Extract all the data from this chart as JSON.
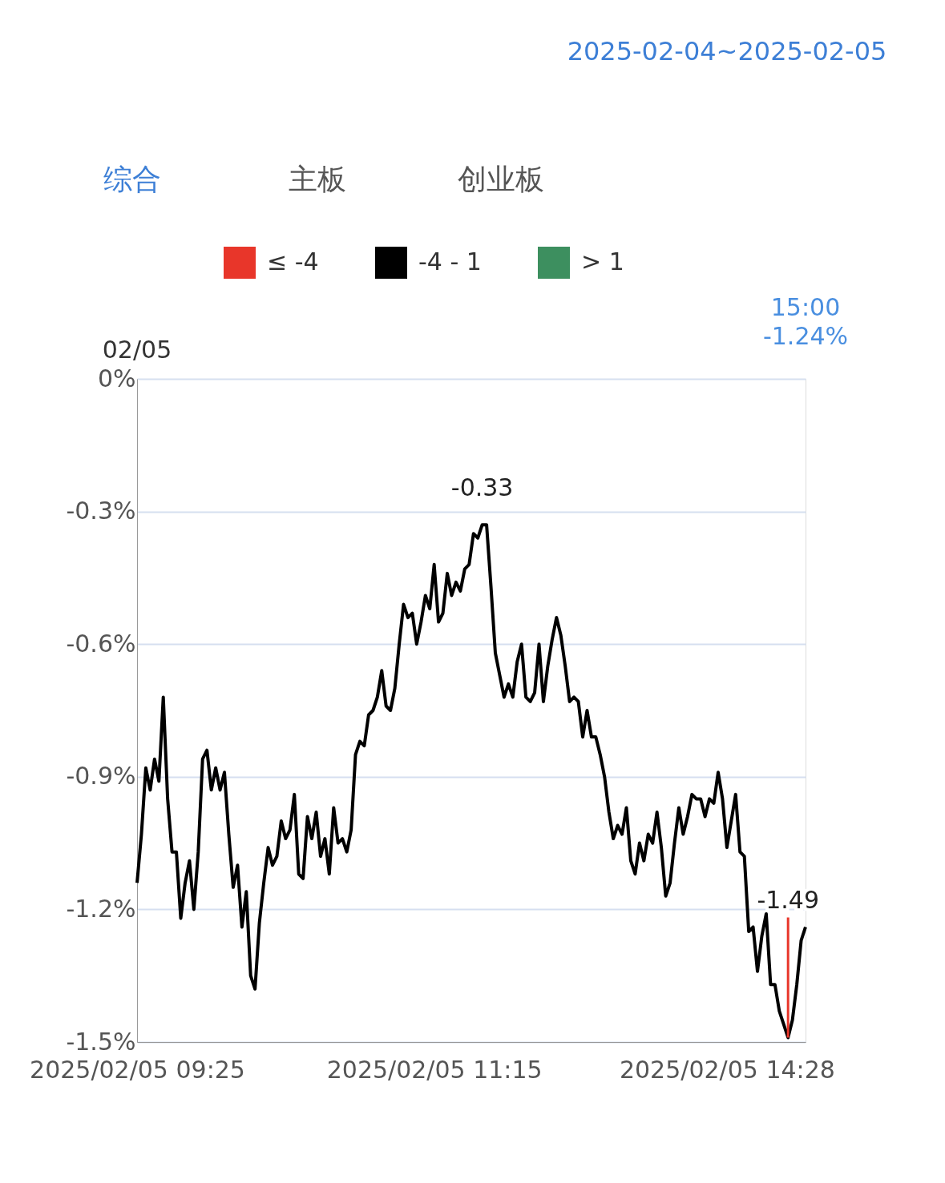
{
  "chart_data": {
    "type": "line",
    "categories": [
      "2025/02/05 09:25",
      null,
      null,
      null,
      null,
      null,
      null,
      null,
      null,
      null,
      null,
      null,
      null,
      null,
      null,
      null,
      null,
      null,
      null,
      null,
      null,
      null,
      null,
      null,
      null,
      null,
      null,
      null,
      null,
      null,
      null,
      null,
      null,
      null,
      null,
      null,
      null,
      null,
      null,
      null,
      null,
      null,
      null,
      null,
      null,
      null,
      null,
      null,
      null,
      null,
      null,
      null,
      null,
      null,
      null,
      null,
      null,
      null,
      null,
      null,
      null,
      null,
      null,
      null,
      null,
      null,
      null,
      null,
      "2025/02/05 11:15",
      null,
      null,
      null,
      null,
      null,
      null,
      null,
      null,
      null,
      null,
      null,
      null,
      null,
      null,
      null,
      null,
      null,
      null,
      null,
      null,
      null,
      null,
      null,
      null,
      null,
      null,
      null,
      null,
      null,
      null,
      null,
      null,
      null,
      null,
      null,
      null,
      null,
      null,
      null,
      null,
      null,
      null,
      null,
      null,
      null,
      null,
      null,
      null,
      null,
      null,
      null,
      null,
      null,
      null,
      null,
      null,
      null,
      null,
      null,
      null,
      null,
      null,
      null,
      null,
      null,
      null,
      "2025/02/05 14:28",
      null,
      null,
      null,
      null,
      null,
      null,
      null,
      null,
      null,
      null,
      null,
      null,
      null,
      null,
      null,
      null,
      null,
      null
    ],
    "series": [
      {
        "name": "≤ -4",
        "color": "#e8362a",
        "values": [
          null,
          null,
          null,
          null,
          null,
          null,
          null,
          null,
          null,
          null,
          null,
          null,
          null,
          null,
          null,
          null,
          null,
          null,
          null,
          null,
          null,
          null,
          null,
          null,
          null,
          null,
          null,
          null,
          null,
          null,
          null,
          null,
          null,
          null,
          null,
          null,
          null,
          null,
          null,
          null,
          null,
          null,
          null,
          null,
          null,
          null,
          null,
          null,
          null,
          null,
          null,
          null,
          null,
          null,
          null,
          null,
          null,
          null,
          null,
          null,
          null,
          null,
          null,
          null,
          null,
          null,
          null,
          null,
          null,
          null,
          null,
          null,
          null,
          null,
          null,
          null,
          null,
          null,
          null,
          null,
          null,
          null,
          null,
          null,
          null,
          null,
          null,
          null,
          null,
          null,
          null,
          null,
          null,
          null,
          null,
          null,
          null,
          null,
          null,
          null,
          null,
          null,
          null,
          null,
          null,
          null,
          null,
          null,
          null,
          null,
          null,
          null,
          null,
          null,
          null,
          null,
          null,
          null,
          null,
          null,
          null,
          null,
          null,
          null,
          null,
          null,
          null,
          null,
          null,
          null,
          null,
          null,
          null,
          null,
          null,
          null,
          null,
          null,
          null,
          null,
          null,
          null,
          null,
          null,
          null,
          null,
          null,
          null,
          null,
          null,
          null,
          null,
          null,
          null
        ]
      },
      {
        "name": "-4 - 1",
        "color": "#000000",
        "values": [
          -1.14,
          -1.03,
          -0.88,
          -0.93,
          -0.86,
          -0.91,
          -0.72,
          -0.95,
          -1.07,
          -1.07,
          -1.22,
          -1.14,
          -1.09,
          -1.2,
          -1.07,
          -0.86,
          -0.84,
          -0.93,
          -0.88,
          -0.93,
          -0.89,
          -1.03,
          -1.15,
          -1.1,
          -1.24,
          -1.16,
          -1.35,
          -1.38,
          -1.23,
          -1.14,
          -1.06,
          -1.1,
          -1.08,
          -1.0,
          -1.04,
          -1.02,
          -0.94,
          -1.12,
          -1.13,
          -0.99,
          -1.04,
          -0.98,
          -1.08,
          -1.04,
          -1.12,
          -0.97,
          -1.05,
          -1.04,
          -1.07,
          -1.02,
          -0.85,
          -0.82,
          -0.83,
          -0.76,
          -0.75,
          -0.72,
          -0.66,
          -0.74,
          -0.75,
          -0.7,
          -0.6,
          -0.51,
          -0.54,
          -0.53,
          -0.6,
          -0.55,
          -0.49,
          -0.52,
          -0.42,
          -0.55,
          -0.53,
          -0.44,
          -0.49,
          -0.46,
          -0.48,
          -0.43,
          -0.42,
          -0.35,
          -0.36,
          -0.33,
          -0.33,
          -0.47,
          -0.62,
          -0.67,
          -0.72,
          -0.69,
          -0.72,
          -0.64,
          -0.6,
          -0.72,
          -0.73,
          -0.71,
          -0.6,
          -0.73,
          -0.65,
          -0.59,
          -0.54,
          -0.58,
          -0.65,
          -0.73,
          -0.72,
          -0.73,
          -0.81,
          -0.75,
          -0.81,
          -0.81,
          -0.85,
          -0.9,
          -0.98,
          -1.04,
          -1.01,
          -1.03,
          -0.97,
          -1.09,
          -1.12,
          -1.05,
          -1.09,
          -1.03,
          -1.05,
          -0.98,
          -1.06,
          -1.17,
          -1.14,
          -1.05,
          -0.97,
          -1.03,
          -0.99,
          -0.94,
          -0.95,
          -0.95,
          -0.99,
          -0.95,
          -0.96,
          -0.89,
          -0.95,
          -1.06,
          -1.0,
          -0.94,
          -1.07,
          -1.08,
          -1.25,
          -1.24,
          -1.34,
          -1.26,
          -1.21,
          -1.37,
          -1.37,
          -1.43,
          -1.46,
          -1.49,
          -1.45,
          -1.37,
          -1.27,
          -1.24
        ]
      },
      {
        "name": "> 1",
        "color": "#3d8f5f",
        "values": [
          null,
          null,
          null,
          null,
          null,
          null,
          null,
          null,
          null,
          null,
          null,
          null,
          null,
          null,
          null,
          null,
          null,
          null,
          null,
          null,
          null,
          null,
          null,
          null,
          null,
          null,
          null,
          null,
          null,
          null,
          null,
          null,
          null,
          null,
          null,
          null,
          null,
          null,
          null,
          null,
          null,
          null,
          null,
          null,
          null,
          null,
          null,
          null,
          null,
          null,
          null,
          null,
          null,
          null,
          null,
          null,
          null,
          null,
          null,
          null,
          null,
          null,
          null,
          null,
          null,
          null,
          null,
          null,
          null,
          null,
          null,
          null,
          null,
          null,
          null,
          null,
          null,
          null,
          null,
          null,
          null,
          null,
          null,
          null,
          null,
          null,
          null,
          null,
          null,
          null,
          null,
          null,
          null,
          null,
          null,
          null,
          null,
          null,
          null,
          null,
          null,
          null,
          null,
          null,
          null,
          null,
          null,
          null,
          null,
          null,
          null,
          null,
          null,
          null,
          null,
          null,
          null,
          null,
          null,
          null,
          null,
          null,
          null,
          null,
          null,
          null,
          null,
          null,
          null,
          null,
          null,
          null,
          null,
          null,
          null,
          null,
          null,
          null,
          null,
          null,
          null,
          null,
          null,
          null,
          null,
          null,
          null,
          null,
          null,
          null,
          null,
          null,
          null,
          null
        ]
      }
    ],
    "ylim": [
      -1.5,
      0
    ],
    "yticks": [
      {
        "value": 0,
        "label": "0%"
      },
      {
        "value": -0.3,
        "label": "-0.3%"
      },
      {
        "value": -0.6,
        "label": "-0.6%"
      },
      {
        "value": -0.9,
        "label": "-0.9%"
      },
      {
        "value": -1.2,
        "label": "-1.2%"
      },
      {
        "value": -1.5,
        "label": "-1.5%"
      }
    ],
    "grid": "y",
    "legend": "top",
    "annotations": [
      "02/05",
      "15:00\n-1.24%",
      "综合",
      "主板",
      "创业板",
      "2025-02-04~2025-02-05",
      {
        "text": "-0.33",
        "y": -0.33
      },
      {
        "text": "-1.49",
        "y": -1.49
      }
    ]
  }
}
